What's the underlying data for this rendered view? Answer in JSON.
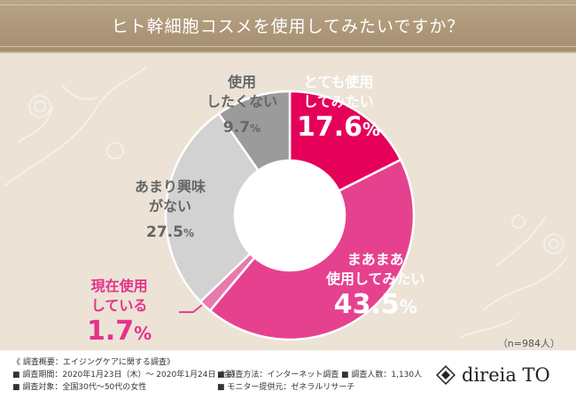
{
  "title": "ヒト幹細胞コスメを使用してみたいですか？",
  "chart_data": {
    "type": "pie",
    "categories": [
      "とても使用してみたい",
      "まあまあ使用してみたい",
      "現在使用している",
      "あまり興味がない",
      "使用したくない"
    ],
    "values": [
      17.6,
      43.5,
      1.7,
      27.5,
      9.7
    ],
    "colors": [
      "#e5005a",
      "#e6418f",
      "#e879ae",
      "#d2d2d2",
      "#9b9b9b"
    ],
    "unit": "%"
  },
  "labels": [
    {
      "name_lines": [
        "とても使用",
        "してみたい"
      ],
      "num": "17.6",
      "pct": "%"
    },
    {
      "name_lines": [
        "まあまあ",
        "使用してみたい"
      ],
      "num": "43.5",
      "pct": "%"
    },
    {
      "name_lines": [
        "現在使用",
        "している"
      ],
      "num": "1.7",
      "pct": "%"
    },
    {
      "name_lines": [
        "あまり興味",
        "がない"
      ],
      "num": "27.5",
      "pct": "%"
    },
    {
      "name_lines": [
        "使用",
        "したくない"
      ],
      "num": "9.7",
      "pct": "%"
    }
  ],
  "sample_note": "（n=984人）",
  "footer": {
    "outline": "《 調査概要：エイジングケアに関する調査》",
    "period": "■ 調査期間：2020年1月23日（木）～ 2020年1月24日（金）",
    "target": "■ 調査対象：全国30代～50代の女性",
    "method": "■ 調査方法：インターネット調査",
    "provider": "■ モニター提供元：ゼネラルリサーチ",
    "count": "■ 調査人数：1,130人"
  },
  "logo": {
    "text": "direia TO"
  }
}
